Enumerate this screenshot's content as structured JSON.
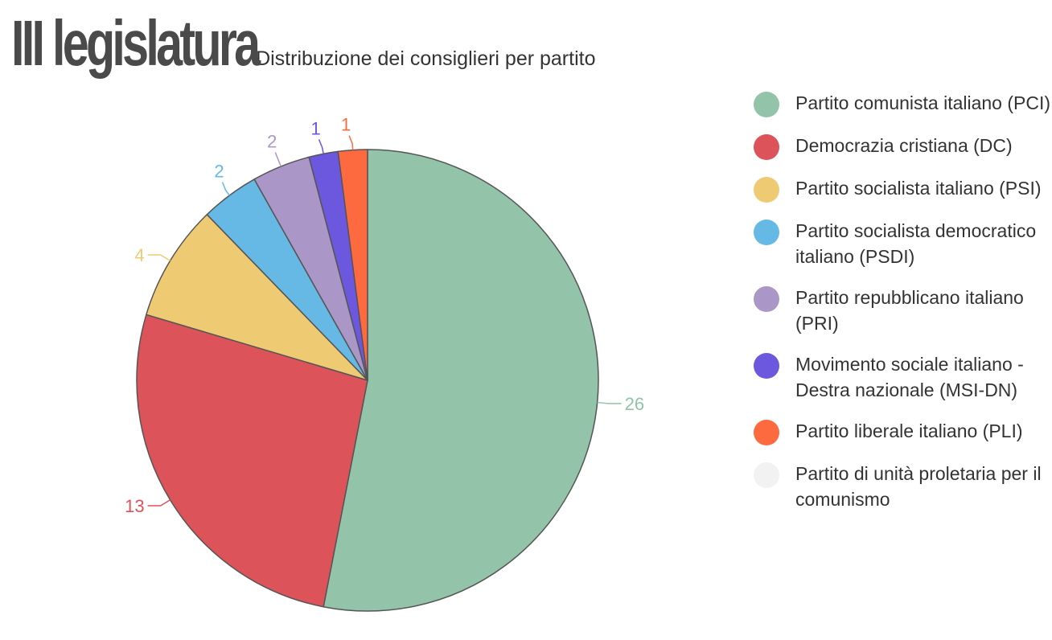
{
  "header": {
    "title": "III legislatura",
    "subtitle": "Distribuzione dei consiglieri per partito"
  },
  "chart_data": {
    "type": "pie",
    "title": "III legislatura",
    "subtitle": "Distribuzione dei consiglieri per partito",
    "legend_position": "right",
    "slice_border_color": "#555555",
    "slices": [
      {
        "label": "Partito comunista italiano (PCI)",
        "value": 26,
        "color": "#93c3a8"
      },
      {
        "label": "Democrazia cristiana (DC)",
        "value": 13,
        "color": "#dc545a"
      },
      {
        "label": "Partito socialista italiano (PSI)",
        "value": 4,
        "color": "#eecb72"
      },
      {
        "label": "Partito socialista democratico italiano (PSDI)",
        "value": 2,
        "color": "#65b9e4"
      },
      {
        "label": "Partito repubblicano italiano (PRI)",
        "value": 2,
        "color": "#ab96c8"
      },
      {
        "label": "Movimento sociale italiano - Destra nazionale (MSI-DN)",
        "value": 1,
        "color": "#6c57df"
      },
      {
        "label": "Partito liberale italiano (PLI)",
        "value": 1,
        "color": "#fe6a40"
      },
      {
        "label": "Partito di unità proletaria per il comunismo",
        "value": 0,
        "color": "#f2f2f2"
      }
    ]
  },
  "legend": {
    "items": [
      {
        "label": "Partito comunista italiano (PCI)",
        "color": "#93c3a8"
      },
      {
        "label": "Democrazia cristiana (DC)",
        "color": "#dc545a"
      },
      {
        "label": "Partito socialista italiano (PSI)",
        "color": "#eecb72"
      },
      {
        "label": "Partito socialista democratico italiano (PSDI)",
        "color": "#65b9e4"
      },
      {
        "label": "Partito repubblicano italiano (PRI)",
        "color": "#ab96c8"
      },
      {
        "label": "Movimento sociale italiano - Destra nazionale (MSI-DN)",
        "color": "#6c57df"
      },
      {
        "label": "Partito liberale italiano (PLI)",
        "color": "#fe6a40"
      },
      {
        "label": "Partito di unità proletaria per il comunismo",
        "color": "#f2f2f2"
      }
    ]
  }
}
